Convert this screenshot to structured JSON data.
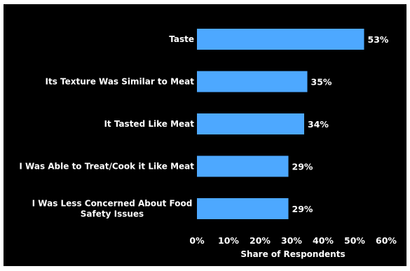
{
  "chart_data": {
    "type": "bar",
    "orientation": "horizontal",
    "categories": [
      "Taste",
      "Its Texture Was Similar to Meat",
      "It Tasted Like Meat",
      "I Was Able to Treat/Cook it Like Meat",
      "I Was Less Concerned About Food Safety Issues"
    ],
    "category_lines": [
      [
        "Taste"
      ],
      [
        "Its Texture Was Similar to Meat"
      ],
      [
        "It Tasted Like Meat"
      ],
      [
        "I Was Able to Treat/Cook it Like Meat"
      ],
      [
        "I Was Less Concerned About Food",
        "Safety Issues"
      ]
    ],
    "values": [
      53,
      35,
      34,
      29,
      29
    ],
    "data_labels": [
      "53%",
      "35%",
      "34%",
      "29%",
      "29%"
    ],
    "xlabel": "Share of Respondents",
    "xlim": [
      0,
      60
    ],
    "xticks": [
      0,
      10,
      20,
      30,
      40,
      50,
      60
    ],
    "xtick_labels": [
      "0%",
      "10%",
      "20%",
      "30%",
      "40%",
      "50%",
      "60%"
    ],
    "grid": false,
    "colors": {
      "background": "#000000",
      "bar": "#4da8ff",
      "text": "#ffffff"
    }
  }
}
